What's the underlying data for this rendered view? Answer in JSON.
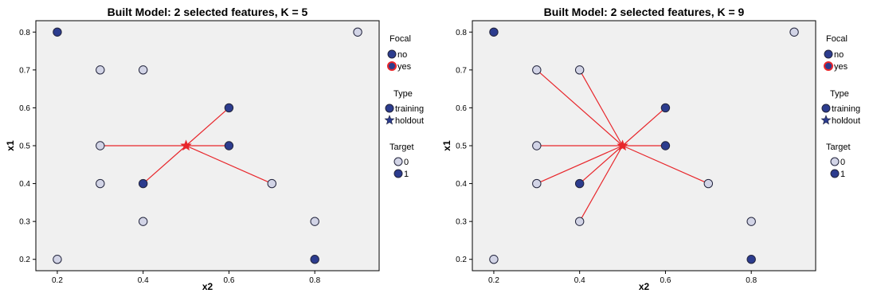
{
  "chart_data": [
    {
      "type": "scatter",
      "title": "Built Model: 2 selected features, K = 5",
      "xlabel": "x2",
      "ylabel": "x1",
      "xlim": [
        0.15,
        0.95
      ],
      "ylim": [
        0.17,
        0.83
      ],
      "xticks": [
        "0.2",
        "0.4",
        "0.6",
        "0.8"
      ],
      "yticks": [
        "0.2",
        "0.3",
        "0.4",
        "0.5",
        "0.6",
        "0.7",
        "0.8"
      ],
      "grid": false,
      "legend_placement": "right",
      "focal_point": {
        "x": 0.5,
        "y": 0.5,
        "type": "holdout"
      },
      "points": [
        {
          "x": 0.2,
          "y": 0.8,
          "target": "1"
        },
        {
          "x": 0.9,
          "y": 0.8,
          "target": "0"
        },
        {
          "x": 0.3,
          "y": 0.7,
          "target": "0"
        },
        {
          "x": 0.4,
          "y": 0.7,
          "target": "0"
        },
        {
          "x": 0.6,
          "y": 0.6,
          "target": "1"
        },
        {
          "x": 0.3,
          "y": 0.5,
          "target": "0"
        },
        {
          "x": 0.6,
          "y": 0.5,
          "target": "1"
        },
        {
          "x": 0.3,
          "y": 0.4,
          "target": "0"
        },
        {
          "x": 0.4,
          "y": 0.4,
          "target": "1"
        },
        {
          "x": 0.7,
          "y": 0.4,
          "target": "0"
        },
        {
          "x": 0.4,
          "y": 0.3,
          "target": "0"
        },
        {
          "x": 0.8,
          "y": 0.3,
          "target": "0"
        },
        {
          "x": 0.2,
          "y": 0.2,
          "target": "0"
        },
        {
          "x": 0.8,
          "y": 0.2,
          "target": "1"
        }
      ],
      "neighbors": [
        {
          "x": 0.6,
          "y": 0.6
        },
        {
          "x": 0.6,
          "y": 0.5
        },
        {
          "x": 0.3,
          "y": 0.5
        },
        {
          "x": 0.4,
          "y": 0.4
        },
        {
          "x": 0.7,
          "y": 0.4
        }
      ]
    },
    {
      "type": "scatter",
      "title": "Built Model: 2 selected features, K = 9",
      "xlabel": "x2",
      "ylabel": "x1",
      "xlim": [
        0.15,
        0.95
      ],
      "ylim": [
        0.17,
        0.83
      ],
      "xticks": [
        "0.2",
        "0.4",
        "0.6",
        "0.8"
      ],
      "yticks": [
        "0.2",
        "0.3",
        "0.4",
        "0.5",
        "0.6",
        "0.7",
        "0.8"
      ],
      "grid": false,
      "legend_placement": "right",
      "focal_point": {
        "x": 0.5,
        "y": 0.5,
        "type": "holdout"
      },
      "points": [
        {
          "x": 0.2,
          "y": 0.8,
          "target": "1"
        },
        {
          "x": 0.9,
          "y": 0.8,
          "target": "0"
        },
        {
          "x": 0.3,
          "y": 0.7,
          "target": "0"
        },
        {
          "x": 0.4,
          "y": 0.7,
          "target": "0"
        },
        {
          "x": 0.6,
          "y": 0.6,
          "target": "1"
        },
        {
          "x": 0.3,
          "y": 0.5,
          "target": "0"
        },
        {
          "x": 0.6,
          "y": 0.5,
          "target": "1"
        },
        {
          "x": 0.3,
          "y": 0.4,
          "target": "0"
        },
        {
          "x": 0.4,
          "y": 0.4,
          "target": "1"
        },
        {
          "x": 0.7,
          "y": 0.4,
          "target": "0"
        },
        {
          "x": 0.4,
          "y": 0.3,
          "target": "0"
        },
        {
          "x": 0.8,
          "y": 0.3,
          "target": "0"
        },
        {
          "x": 0.2,
          "y": 0.2,
          "target": "0"
        },
        {
          "x": 0.8,
          "y": 0.2,
          "target": "1"
        }
      ],
      "neighbors": [
        {
          "x": 0.3,
          "y": 0.7
        },
        {
          "x": 0.4,
          "y": 0.7
        },
        {
          "x": 0.6,
          "y": 0.6
        },
        {
          "x": 0.3,
          "y": 0.5
        },
        {
          "x": 0.6,
          "y": 0.5
        },
        {
          "x": 0.3,
          "y": 0.4
        },
        {
          "x": 0.4,
          "y": 0.4
        },
        {
          "x": 0.7,
          "y": 0.4
        },
        {
          "x": 0.4,
          "y": 0.3
        }
      ]
    }
  ],
  "legend": {
    "focal": {
      "title": "Focal",
      "items": [
        "no",
        "yes"
      ]
    },
    "type": {
      "title": "Type",
      "items": [
        "training",
        "holdout"
      ]
    },
    "target": {
      "title": "Target",
      "items": [
        "0",
        "1"
      ]
    }
  },
  "colors": {
    "plot_bg": "#f0f0f0",
    "target_0_fill": "#d2d4e6",
    "target_1_fill": "#2c3c8e",
    "point_stroke": "#22243c",
    "focal_red": "#e8262b",
    "neighbor_line": "#e8262b",
    "legend_no_fill": "#2c3c8e",
    "axis": "#000000"
  }
}
